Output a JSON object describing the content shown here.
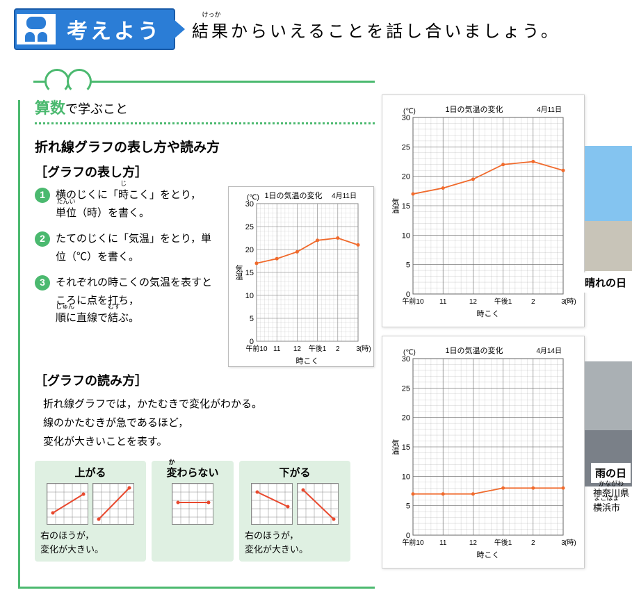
{
  "header": {
    "banner_label": "考えよう",
    "description": "結果からいえることを話し合いましょう。",
    "ruby_kekka": "けっか"
  },
  "section": {
    "math_em": "算数",
    "math_suffix": "で学ぶこと"
  },
  "graph_section": {
    "title": "折れ線グラフの表し方や読み方",
    "make_label": "［グラフの表し方］",
    "read_label": "［グラフの読み方］",
    "steps": [
      {
        "n": "1",
        "text_a": "横のじくに「",
        "ruby_word": "時",
        "ruby": "じ",
        "text_b": "こく」をとり，",
        "text_c": "単位（時）を書く。",
        "ruby2_word": "単位",
        "ruby2": "たんい"
      },
      {
        "n": "2",
        "text": "たてのじくに「気温」をとり，単位（℃）を書く。"
      },
      {
        "n": "3",
        "text_a": "それぞれの時こくの気温を表すところに点を打ち，",
        "ruby_word": "順",
        "ruby": "じゅん",
        "text_b": "に直線で",
        "ruby2_word": "結",
        "ruby2": "むす",
        "text_c": "ぶ。"
      }
    ],
    "reading_text": "折れ線グラフでは，かたむきで変化がわかる。\n線のかたむきが急であるほど，\n変化が大きいことを表す。"
  },
  "slopes": [
    {
      "title": "上がる",
      "caption": "右のほうが，\n変化が大きい。",
      "lines": [
        [
          [
            0,
            0.7
          ],
          [
            1,
            0.25
          ]
        ],
        [
          [
            0,
            0.85
          ],
          [
            1,
            0.1
          ]
        ]
      ],
      "color": "#e8492e"
    },
    {
      "title": "変わらない",
      "ruby": "か",
      "caption": "",
      "lines": [
        [
          [
            0,
            0.45
          ],
          [
            1,
            0.45
          ]
        ]
      ],
      "color": "#e8492e"
    },
    {
      "title": "下がる",
      "caption": "右のほうが，\n変化が大きい。",
      "lines": [
        [
          [
            0,
            0.2
          ],
          [
            1,
            0.55
          ]
        ],
        [
          [
            0,
            0.15
          ],
          [
            1,
            0.85
          ]
        ]
      ],
      "color": "#e8492e"
    }
  ],
  "mini_chart": {
    "title": "1日の気温の変化",
    "date": "4月11日",
    "yaxis_label": "気温",
    "xaxis_label": "時こく",
    "ylim": [
      0,
      30
    ],
    "yticks": [
      5,
      10,
      15,
      20,
      25,
      30
    ],
    "yunit": "(℃)",
    "xticks": [
      "午前10",
      "11",
      "12",
      "午後1",
      "2",
      "3"
    ],
    "xunit": "(時)",
    "points": [
      [
        0,
        17
      ],
      [
        1,
        18
      ],
      [
        2,
        19.5
      ],
      [
        3,
        22
      ],
      [
        4,
        22.5
      ],
      [
        5,
        21
      ]
    ],
    "line_color": "#f06a2c",
    "grid_color": "#888",
    "bg": "#ffffff"
  },
  "charts": [
    {
      "title": "1日の気温の変化",
      "date": "4月11日",
      "yaxis_label": "気温",
      "xaxis_label": "時こく",
      "ylim": [
        0,
        30
      ],
      "yticks": [
        5,
        10,
        15,
        20,
        25,
        30
      ],
      "yunit": "(℃)",
      "xticks": [
        "午前10",
        "11",
        "12",
        "午後1",
        "2",
        "3"
      ],
      "xunit": "(時)",
      "points": [
        [
          0,
          17
        ],
        [
          1,
          18
        ],
        [
          2,
          19.5
        ],
        [
          3,
          22
        ],
        [
          4,
          22.5
        ],
        [
          5,
          21
        ]
      ],
      "line_color": "#f06a2c",
      "grid_color": "#666",
      "bg": "#ffffff"
    },
    {
      "title": "1日の気温の変化",
      "date": "4月14日",
      "yaxis_label": "気温",
      "xaxis_label": "時こく",
      "ylim": [
        0,
        30
      ],
      "yticks": [
        5,
        10,
        15,
        20,
        25,
        30
      ],
      "yunit": "(℃)",
      "xticks": [
        "午前10",
        "11",
        "12",
        "午後1",
        "2",
        "3"
      ],
      "xunit": "(時)",
      "points": [
        [
          0,
          7
        ],
        [
          1,
          7
        ],
        [
          2,
          7
        ],
        [
          3,
          8
        ],
        [
          4,
          8
        ],
        [
          5,
          8
        ]
      ],
      "line_color": "#f06a2c",
      "grid_color": "#666",
      "bg": "#ffffff"
    }
  ],
  "photos": {
    "sunny_label": "晴れの日",
    "rainy_label": "雨の日",
    "prefecture": "神奈川県",
    "prefecture_ruby": "かながわ",
    "city": "横浜市",
    "city_ruby": "よこはま"
  }
}
